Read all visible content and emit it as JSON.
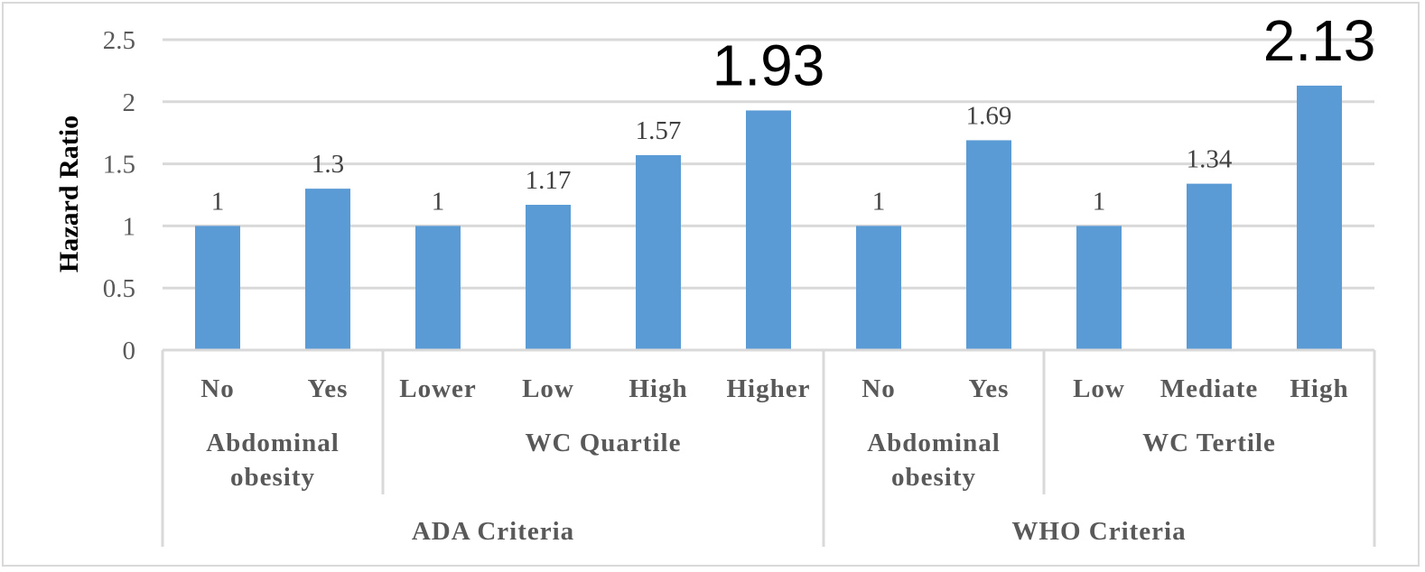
{
  "chart_data": {
    "type": "bar",
    "ylabel": "Hazard Ratio",
    "ylim": [
      0,
      2.5
    ],
    "yticks": [
      "0",
      "0.5",
      "1",
      "1.5",
      "2",
      "2.5"
    ],
    "grid": true,
    "categories": [
      "No",
      "Yes",
      "Lower",
      "Low",
      "High",
      "Higher",
      "No",
      "Yes",
      "Low",
      "Mediate",
      "High"
    ],
    "values": [
      1,
      1.3,
      1,
      1.17,
      1.57,
      1.93,
      1,
      1.69,
      1,
      1.34,
      2.13
    ],
    "data_labels": [
      "1",
      "1.3",
      "1",
      "1.17",
      "1.57",
      "1.93",
      "1",
      "1.69",
      "1",
      "1.34",
      "2.13"
    ],
    "highlighted_labels": [
      5,
      10
    ],
    "groups": [
      {
        "label_lines": [
          "Abdominal",
          "obesity"
        ],
        "start": 0,
        "end": 2
      },
      {
        "label_lines": [
          "WC Quartile"
        ],
        "start": 2,
        "end": 6
      },
      {
        "label_lines": [
          "Abdominal",
          "obesity"
        ],
        "start": 6,
        "end": 8
      },
      {
        "label_lines": [
          "WC Tertile"
        ],
        "start": 8,
        "end": 11
      }
    ],
    "supergroups": [
      {
        "label": "ADA Criteria",
        "start": 0,
        "end": 6
      },
      {
        "label": "WHO Criteria",
        "start": 6,
        "end": 11
      }
    ],
    "bar_color": "#5b9bd5",
    "grid_color": "#d9d9d9"
  }
}
